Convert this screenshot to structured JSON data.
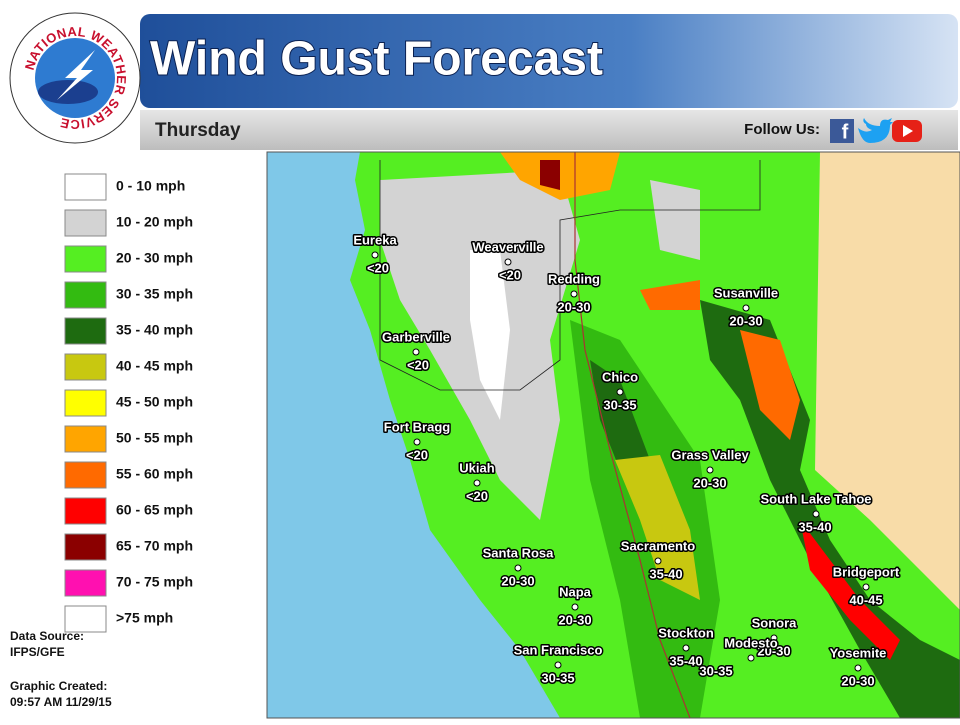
{
  "header": {
    "title": "Wind Gust Forecast",
    "day": "Thursday",
    "follow": "Follow Us:"
  },
  "logo": {
    "text": "NATIONAL WEATHER SERVICE"
  },
  "legend": {
    "items": [
      {
        "label": "0 - 10 mph",
        "color": "#ffffff"
      },
      {
        "label": "10 - 20 mph",
        "color": "#d3d3d3"
      },
      {
        "label": "20 - 30 mph",
        "color": "#55ee22"
      },
      {
        "label": "30 - 35 mph",
        "color": "#33bb11"
      },
      {
        "label": "35 - 40 mph",
        "color": "#1e6b10"
      },
      {
        "label": "40 - 45 mph",
        "color": "#c8c810"
      },
      {
        "label": "45 - 50 mph",
        "color": "#ffff00"
      },
      {
        "label": "50 - 55 mph",
        "color": "#ffa500"
      },
      {
        "label": "55 - 60 mph",
        "color": "#ff6a00"
      },
      {
        "label": "60 - 65 mph",
        "color": "#ff0000"
      },
      {
        "label": "65 - 70 mph",
        "color": "#8b0000"
      },
      {
        "label": "70 - 75 mph",
        "color": "#ff10b0"
      },
      {
        "label": ">75 mph",
        "color": "#ffffff"
      }
    ]
  },
  "footer": {
    "source_label": "Data Source:",
    "source": "IFPS/GFE",
    "created_label": "Graphic Created:",
    "created": "09:57 AM 11/29/15"
  },
  "cities": [
    {
      "name": "Eureka",
      "gust": "<20"
    },
    {
      "name": "Weaverville",
      "gust": "<20"
    },
    {
      "name": "Redding",
      "gust": "20-30"
    },
    {
      "name": "Garberville",
      "gust": "<20"
    },
    {
      "name": "Susanville",
      "gust": "20-30"
    },
    {
      "name": "Chico",
      "gust": "30-35"
    },
    {
      "name": "Fort Bragg",
      "gust": "<20"
    },
    {
      "name": "Grass Valley",
      "gust": "20-30"
    },
    {
      "name": "Ukiah",
      "gust": "<20"
    },
    {
      "name": "South Lake Tahoe",
      "gust": "35-40"
    },
    {
      "name": "Santa Rosa",
      "gust": "20-30"
    },
    {
      "name": "Sacramento",
      "gust": "35-40"
    },
    {
      "name": "Bridgeport",
      "gust": "40-45"
    },
    {
      "name": "Napa",
      "gust": "20-30"
    },
    {
      "name": "Sonora",
      "gust": "20-30"
    },
    {
      "name": "Stockton",
      "gust": "35-40"
    },
    {
      "name": "San Francisco",
      "gust": "30-35"
    },
    {
      "name": "Yosemite",
      "gust": "20-30"
    },
    {
      "name": "Modesto",
      "gust": "30-35"
    }
  ]
}
